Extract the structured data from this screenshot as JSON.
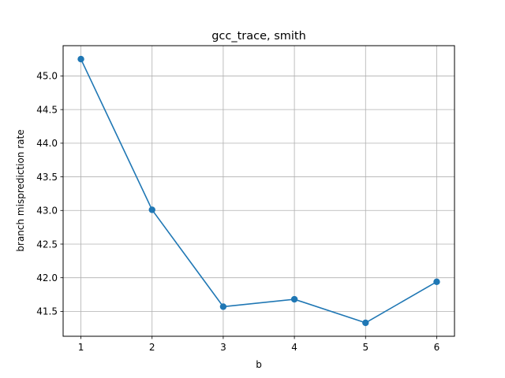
{
  "chart_data": {
    "type": "line",
    "title": "gcc_trace, smith",
    "xlabel": "b",
    "ylabel": "branch misprediction rate",
    "x": [
      1,
      2,
      3,
      4,
      5,
      6
    ],
    "series": [
      {
        "values": [
          45.25,
          43.01,
          41.57,
          41.68,
          41.33,
          41.94
        ],
        "color": "#1f77b4",
        "marker": "circle"
      }
    ],
    "xticks": [
      "1",
      "2",
      "3",
      "4",
      "5",
      "6"
    ],
    "yticks": [
      "41.5",
      "42.0",
      "42.5",
      "43.0",
      "43.5",
      "44.0",
      "44.5",
      "45.0"
    ],
    "xlim": [
      0.75,
      6.25
    ],
    "ylim": [
      41.13,
      45.45
    ],
    "grid": true
  }
}
